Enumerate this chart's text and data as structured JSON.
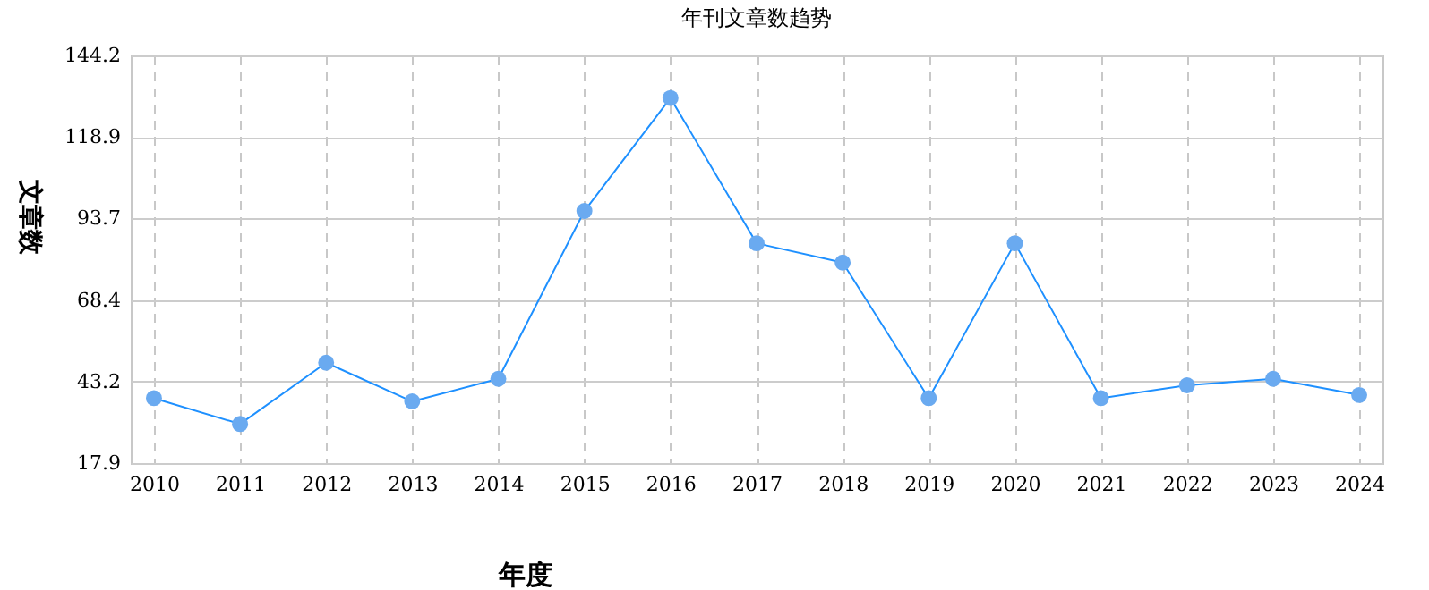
{
  "chart_data": {
    "type": "line",
    "title": "年刊文章数趋势",
    "xlabel": "年度",
    "ylabel": "文章数",
    "categories": [
      "2010",
      "2011",
      "2012",
      "2013",
      "2014",
      "2015",
      "2016",
      "2017",
      "2018",
      "2019",
      "2020",
      "2021",
      "2022",
      "2023",
      "2024"
    ],
    "series": [
      {
        "color": "#1e90ff",
        "values": [
          38,
          30,
          49,
          37,
          44,
          96,
          131,
          86,
          80,
          38,
          86,
          38,
          42,
          44,
          39
        ]
      }
    ],
    "ylim": [
      17.9,
      144.2
    ],
    "yticks": [
      17.9,
      43.2,
      68.4,
      93.7,
      118.9,
      144.2
    ],
    "grid": true,
    "marker": "circle",
    "line_style": "solid"
  }
}
